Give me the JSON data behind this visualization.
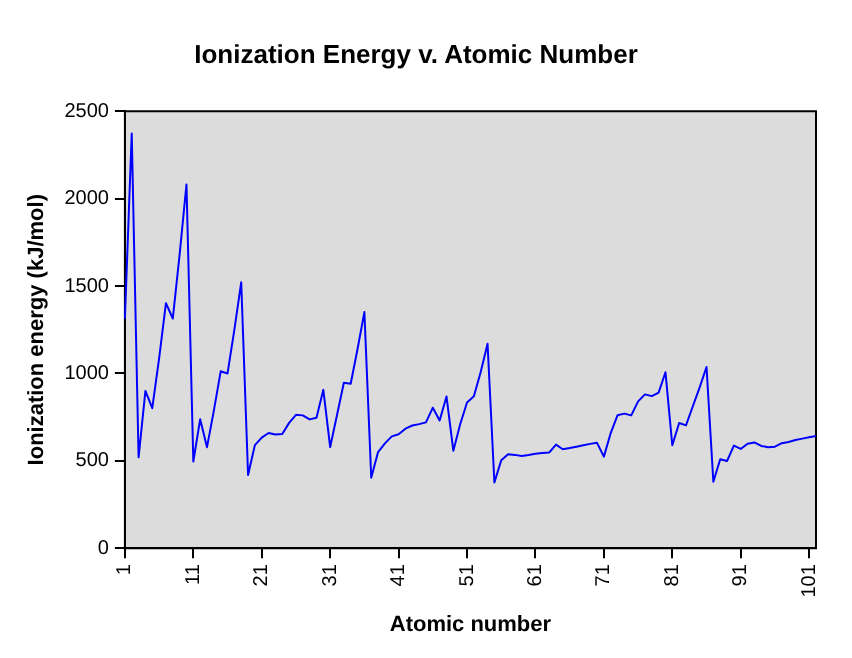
{
  "chart_data": {
    "type": "line",
    "title": "Ionization Energy v. Atomic Number",
    "xlabel": "Atomic number",
    "ylabel": "Ionization energy (kJ/mol)",
    "categories": [
      "1",
      null,
      null,
      null,
      null,
      null,
      null,
      null,
      null,
      null,
      "11",
      null,
      null,
      null,
      null,
      null,
      null,
      null,
      null,
      null,
      "21",
      null,
      null,
      null,
      null,
      null,
      null,
      null,
      null,
      null,
      "31",
      null,
      null,
      null,
      null,
      null,
      null,
      null,
      null,
      null,
      "41",
      null,
      null,
      null,
      null,
      null,
      null,
      null,
      null,
      null,
      "51",
      null,
      null,
      null,
      null,
      null,
      null,
      null,
      null,
      null,
      "61",
      null,
      null,
      null,
      null,
      null,
      null,
      null,
      null,
      null,
      "71",
      null,
      null,
      null,
      null,
      null,
      null,
      null,
      null,
      null,
      "81",
      null,
      null,
      null,
      null,
      null,
      null,
      null,
      null,
      null,
      "91",
      null,
      null,
      null,
      null,
      null,
      null,
      null,
      null,
      null,
      "101",
      null
    ],
    "series": [
      {
        "color": "#0000ff",
        "values": [
          1312,
          2372,
          520,
          900,
          801,
          1086,
          1402,
          1314,
          1681,
          2081,
          496,
          738,
          578,
          787,
          1012,
          1000,
          1251,
          1521,
          419,
          590,
          633,
          659,
          651,
          653,
          717,
          763,
          760,
          737,
          746,
          906,
          579,
          762,
          947,
          941,
          1140,
          1351,
          403,
          550,
          600,
          640,
          652,
          684,
          702,
          710,
          720,
          804,
          731,
          868,
          558,
          709,
          834,
          869,
          1008,
          1170,
          376,
          503,
          538,
          534,
          527,
          533,
          540,
          545,
          547,
          593,
          566,
          573,
          581,
          589,
          597,
          603,
          524,
          659,
          761,
          770,
          760,
          840,
          880,
          870,
          890,
          1007,
          589,
          716,
          703,
          812,
          920,
          1037,
          380,
          509,
          499,
          587,
          568,
          598,
          605,
          585,
          578,
          581,
          601,
          608,
          619,
          627,
          635,
          642
        ]
      }
    ],
    "ylim": [
      0,
      2500
    ],
    "yticks": [
      0,
      500,
      1000,
      1500,
      2000,
      2500
    ],
    "grid": false,
    "legend": false,
    "marker": "none",
    "line_style": "solid"
  }
}
